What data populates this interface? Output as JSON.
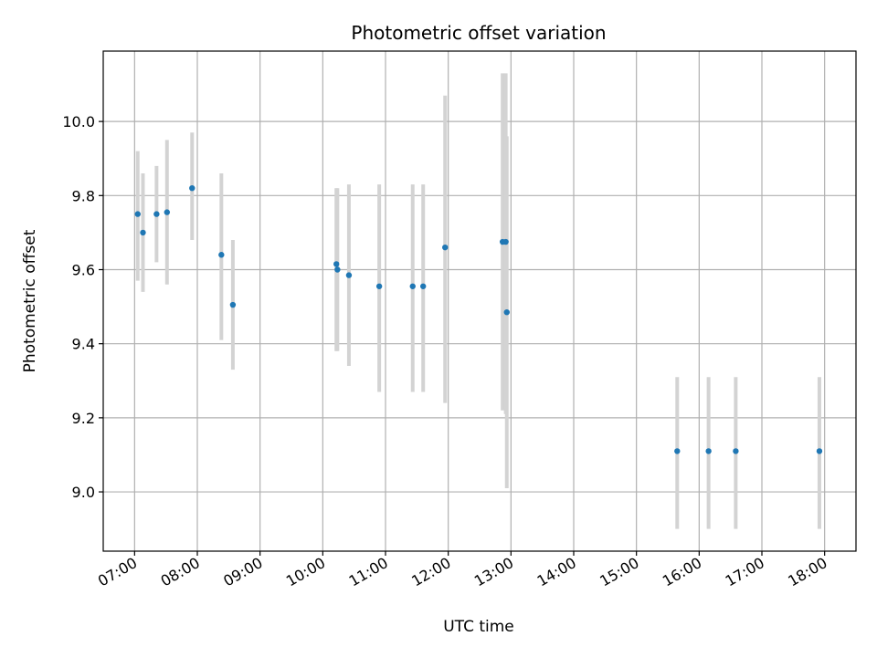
{
  "chart_data": {
    "type": "scatter",
    "title": "Photometric offset variation",
    "xlabel": "UTC time",
    "ylabel": "Photometric offset",
    "x_ticks": [
      "07:00",
      "08:00",
      "09:00",
      "10:00",
      "11:00",
      "12:00",
      "13:00",
      "14:00",
      "15:00",
      "16:00",
      "17:00",
      "18:00"
    ],
    "y_ticks": [
      "9.0",
      "9.2",
      "9.4",
      "9.6",
      "9.8",
      "10.0"
    ],
    "xlim": [
      "06:30",
      "18:30"
    ],
    "ylim": [
      8.84,
      10.19
    ],
    "grid": true,
    "colors": {
      "point": "#1f77b4",
      "errorbar": "#d3d3d3",
      "grid": "#b0b0b0"
    },
    "points": [
      {
        "x": "07:03",
        "y": 9.75,
        "y_low": 9.57,
        "y_high": 9.92
      },
      {
        "x": "07:08",
        "y": 9.7,
        "y_low": 9.54,
        "y_high": 9.86
      },
      {
        "x": "07:21",
        "y": 9.75,
        "y_low": 9.62,
        "y_high": 9.88
      },
      {
        "x": "07:31",
        "y": 9.755,
        "y_low": 9.56,
        "y_high": 9.95
      },
      {
        "x": "07:55",
        "y": 9.82,
        "y_low": 9.68,
        "y_high": 9.97
      },
      {
        "x": "08:23",
        "y": 9.64,
        "y_low": 9.41,
        "y_high": 9.86
      },
      {
        "x": "08:34",
        "y": 9.505,
        "y_low": 9.33,
        "y_high": 9.68
      },
      {
        "x": "10:13",
        "y": 9.615,
        "y_low": 9.38,
        "y_high": 9.82
      },
      {
        "x": "10:14",
        "y": 9.6,
        "y_low": 9.38,
        "y_high": 9.82
      },
      {
        "x": "10:25",
        "y": 9.585,
        "y_low": 9.34,
        "y_high": 9.83
      },
      {
        "x": "10:54",
        "y": 9.555,
        "y_low": 9.27,
        "y_high": 9.83
      },
      {
        "x": "11:26",
        "y": 9.555,
        "y_low": 9.27,
        "y_high": 9.83
      },
      {
        "x": "11:36",
        "y": 9.555,
        "y_low": 9.27,
        "y_high": 9.83
      },
      {
        "x": "11:57",
        "y": 9.66,
        "y_low": 9.24,
        "y_high": 10.07
      },
      {
        "x": "12:52",
        "y": 9.675,
        "y_low": 9.22,
        "y_high": 10.13
      },
      {
        "x": "12:55",
        "y": 9.675,
        "y_low": 9.21,
        "y_high": 10.13
      },
      {
        "x": "12:56",
        "y": 9.485,
        "y_low": 9.01,
        "y_high": 9.96
      },
      {
        "x": "15:39",
        "y": 9.11,
        "y_low": 8.9,
        "y_high": 9.31
      },
      {
        "x": "16:09",
        "y": 9.11,
        "y_low": 8.9,
        "y_high": 9.31
      },
      {
        "x": "16:35",
        "y": 9.11,
        "y_low": 8.9,
        "y_high": 9.31
      },
      {
        "x": "17:55",
        "y": 9.11,
        "y_low": 8.9,
        "y_high": 9.31
      }
    ]
  }
}
